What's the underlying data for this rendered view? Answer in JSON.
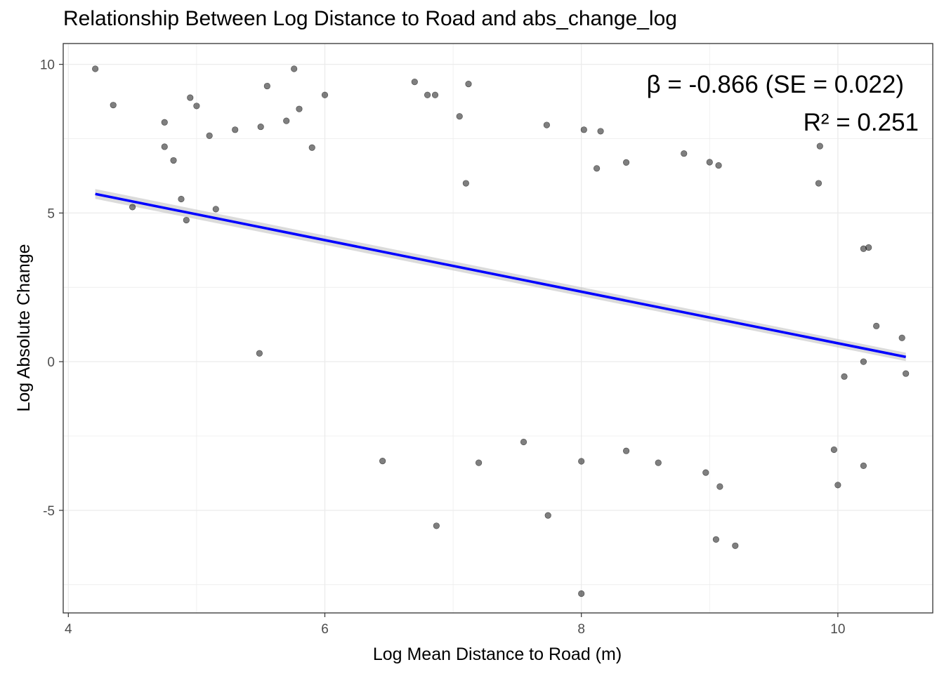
{
  "chart_data": {
    "type": "scatter",
    "title": "Relationship Between Log Distance to Road and abs_change_log",
    "xlabel": "Log Mean Distance to Road (m)",
    "ylabel": "Log Absolute Change",
    "xlim": [
      3.96,
      10.74
    ],
    "ylim": [
      -8.45,
      10.7
    ],
    "x_ticks": [
      4,
      6,
      8,
      10
    ],
    "y_ticks": [
      -5,
      0,
      5,
      10
    ],
    "grid": true,
    "point_color": "#000000",
    "point_opacity": 0.5,
    "fit_line": {
      "color": "#0000ff",
      "ci_color": "#bebebe",
      "x": [
        4.21,
        10.53
      ],
      "y": [
        5.64,
        0.16
      ]
    },
    "annotations": [
      "β = -0.866 (SE = 0.022)",
      "R² = 0.251"
    ],
    "series": [
      {
        "values": [
          [
            4.21,
            9.85
          ],
          [
            5.76,
            9.85
          ],
          [
            4.35,
            8.63
          ],
          [
            4.95,
            8.88
          ],
          [
            5.0,
            8.6
          ],
          [
            5.55,
            9.27
          ],
          [
            6.0,
            8.97
          ],
          [
            6.8,
            8.97
          ],
          [
            6.86,
            8.97
          ],
          [
            7.12,
            9.34
          ],
          [
            6.7,
            9.41
          ],
          [
            7.05,
            8.25
          ],
          [
            7.73,
            7.96
          ],
          [
            8.02,
            7.8
          ],
          [
            8.15,
            7.75
          ],
          [
            4.75,
            7.23
          ],
          [
            4.75,
            8.05
          ],
          [
            4.82,
            6.77
          ],
          [
            5.1,
            7.6
          ],
          [
            5.3,
            7.8
          ],
          [
            5.5,
            7.9
          ],
          [
            5.7,
            8.1
          ],
          [
            5.8,
            8.5
          ],
          [
            5.9,
            7.2
          ],
          [
            4.88,
            5.47
          ],
          [
            4.92,
            4.76
          ],
          [
            5.15,
            5.13
          ],
          [
            4.5,
            5.2
          ],
          [
            5.49,
            0.28
          ],
          [
            6.45,
            -3.34
          ],
          [
            6.87,
            -5.52
          ],
          [
            7.74,
            -5.17
          ],
          [
            8.0,
            -7.8
          ],
          [
            9.05,
            -5.98
          ],
          [
            9.2,
            -6.19
          ],
          [
            8.0,
            -3.35
          ],
          [
            7.2,
            -3.4
          ],
          [
            8.97,
            -3.73
          ],
          [
            9.08,
            -4.2
          ],
          [
            10.0,
            -4.15
          ],
          [
            10.2,
            -3.5
          ],
          [
            9.97,
            -2.96
          ],
          [
            8.6,
            -3.4
          ],
          [
            8.35,
            -3.0
          ],
          [
            7.55,
            -2.7
          ],
          [
            9.86,
            7.25
          ],
          [
            9.85,
            6.0
          ],
          [
            9.0,
            6.71
          ],
          [
            8.8,
            7.0
          ],
          [
            9.07,
            6.6
          ],
          [
            8.35,
            6.7
          ],
          [
            8.12,
            6.5
          ],
          [
            7.1,
            6.0
          ],
          [
            10.2,
            3.8
          ],
          [
            10.24,
            3.84
          ],
          [
            10.3,
            1.2
          ],
          [
            10.5,
            0.8
          ],
          [
            10.53,
            -0.4
          ],
          [
            10.2,
            0.0
          ],
          [
            10.05,
            -0.5
          ]
        ]
      }
    ]
  }
}
